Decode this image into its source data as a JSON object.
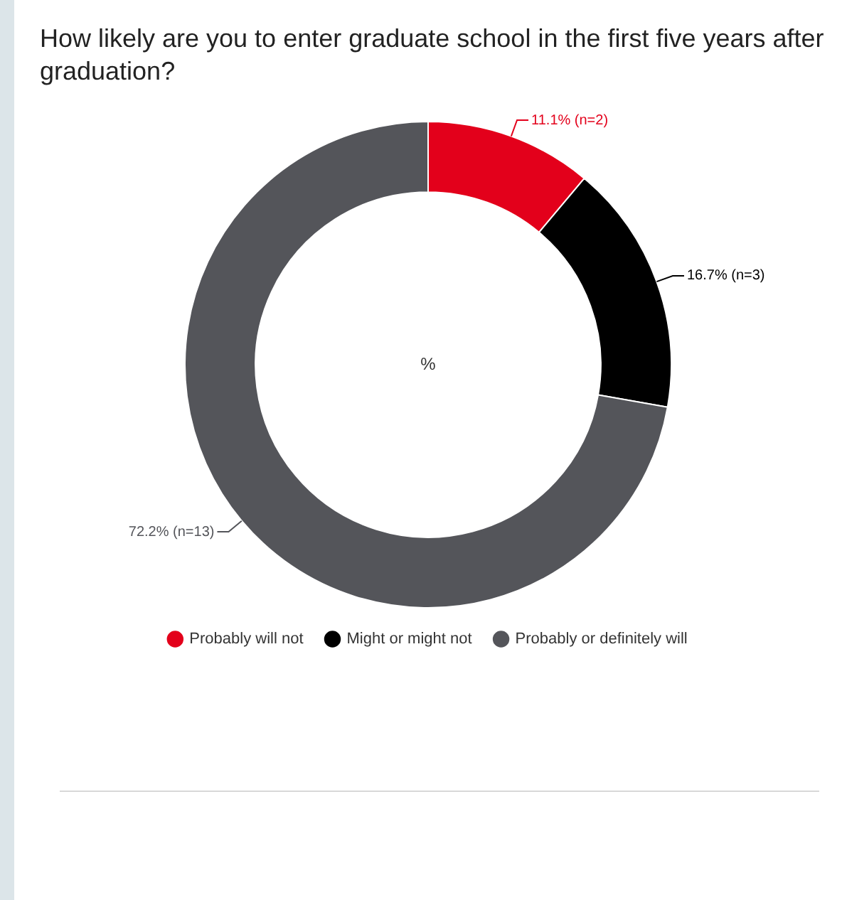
{
  "chart_data": {
    "type": "donut",
    "title": "How likely are you to enter graduate school in the first five years after graduation?",
    "categories": [
      "Probably will not",
      "Might or might not",
      "Probably or definitely will"
    ],
    "values": [
      11.1,
      16.7,
      72.2
    ],
    "colors": [
      "#e3001b",
      "#000000",
      "#54555a"
    ],
    "value_labels": [
      "11.1% (n=2)",
      "16.7% (n=3)",
      "72.2% (n=13)"
    ],
    "annotations": [
      "%"
    ],
    "legend": "bottom"
  }
}
